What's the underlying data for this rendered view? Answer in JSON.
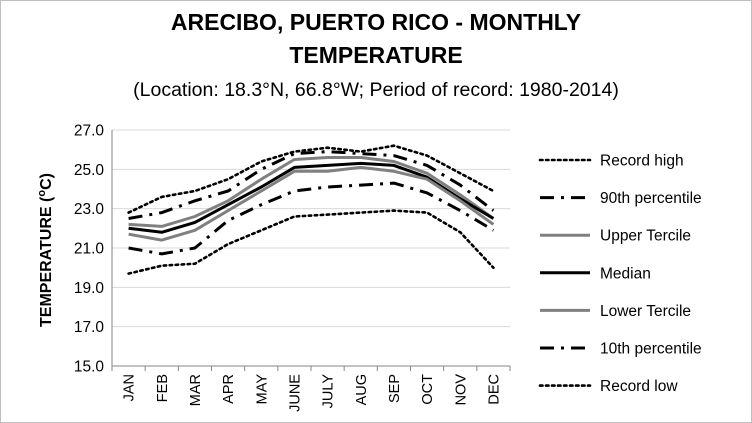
{
  "title_line1": "ARECIBO, PUERTO RICO - MONTHLY",
  "title_line2": "TEMPERATURE",
  "subtitle": "(Location: 18.3°N, 66.8°W; Period of record: 1980-2014)",
  "ylabel_prefix": "TEMPERATURE (",
  "ylabel_sup": "o",
  "ylabel_suffix": "C)",
  "chart_data": {
    "type": "line",
    "title": "ARECIBO, PUERTO RICO - MONTHLY TEMPERATURE",
    "subtitle": "(Location: 18.3°N, 66.8°W; Period of record: 1980-2014)",
    "ylabel": "TEMPERATURE (oC)",
    "xlabel": "",
    "categories": [
      "JAN",
      "FEB",
      "MAR",
      "APR",
      "MAY",
      "JUNE",
      "JULY",
      "AUG",
      "SEP",
      "OCT",
      "NOV",
      "DEC"
    ],
    "ylim": [
      15.0,
      27.0
    ],
    "yticks": [
      "27.0",
      "25.0",
      "23.0",
      "21.0",
      "19.0",
      "17.0",
      "15.0"
    ],
    "grid": true,
    "legend_position": "right",
    "series": [
      {
        "name": "Record high",
        "style": "dotted",
        "color": "#000000",
        "values": [
          22.8,
          23.6,
          23.9,
          24.5,
          25.4,
          25.9,
          26.1,
          25.9,
          26.2,
          25.7,
          24.8,
          23.9
        ]
      },
      {
        "name": "90th percentile",
        "style": "dashdot",
        "color": "#000000",
        "values": [
          22.5,
          22.8,
          23.4,
          23.9,
          25.0,
          25.8,
          25.9,
          25.8,
          25.7,
          25.2,
          24.2,
          22.9
        ]
      },
      {
        "name": "Upper Tercile",
        "style": "solid",
        "color": "#808080",
        "values": [
          22.2,
          22.1,
          22.6,
          23.4,
          24.5,
          25.5,
          25.6,
          25.6,
          25.4,
          24.8,
          23.7,
          22.5
        ]
      },
      {
        "name": "Median",
        "style": "solid",
        "color": "#000000",
        "values": [
          22.0,
          21.8,
          22.3,
          23.2,
          24.1,
          25.1,
          25.2,
          25.3,
          25.2,
          24.6,
          23.5,
          22.5
        ]
      },
      {
        "name": "Lower Tercile",
        "style": "solid",
        "color": "#808080",
        "values": [
          21.7,
          21.4,
          21.9,
          22.9,
          23.9,
          24.9,
          24.9,
          25.1,
          24.9,
          24.5,
          23.4,
          22.2
        ]
      },
      {
        "name": "10th percentile",
        "style": "dashdot",
        "color": "#000000",
        "values": [
          21.0,
          20.7,
          21.0,
          22.4,
          23.2,
          23.9,
          24.1,
          24.2,
          24.3,
          23.8,
          22.9,
          21.9
        ]
      },
      {
        "name": "Record low",
        "style": "dotted",
        "color": "#000000",
        "values": [
          19.7,
          20.1,
          20.2,
          21.2,
          21.9,
          22.6,
          22.7,
          22.8,
          22.9,
          22.8,
          21.8,
          20.0
        ]
      }
    ]
  }
}
